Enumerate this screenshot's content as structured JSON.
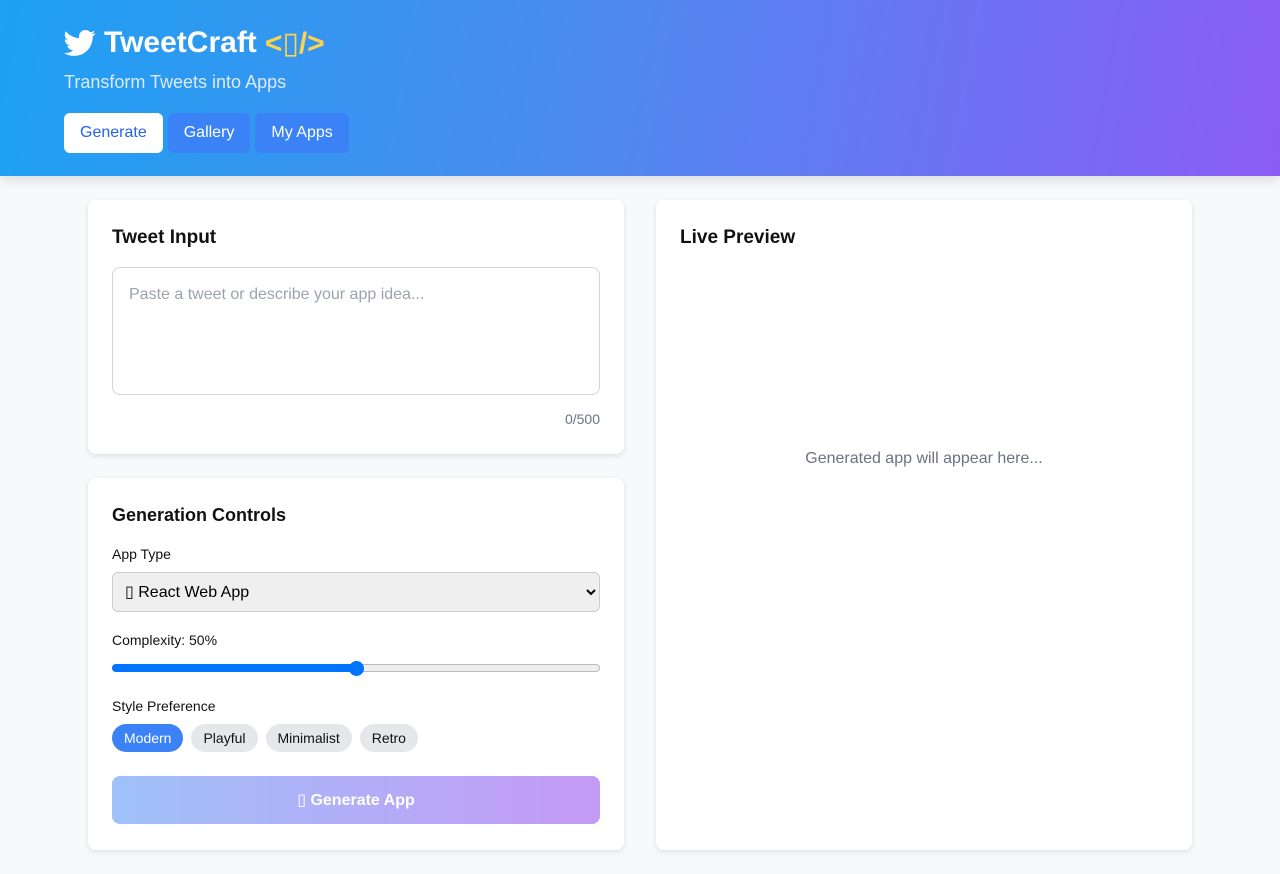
{
  "header": {
    "title": "TweetCraft",
    "code_badge": "<▯/>",
    "subtitle": "Transform Tweets into Apps",
    "nav": [
      {
        "label": "Generate",
        "active": true
      },
      {
        "label": "Gallery"
      },
      {
        "label": "My Apps"
      }
    ]
  },
  "tweet_input": {
    "title": "Tweet Input",
    "placeholder": "Paste a tweet or describe your app idea...",
    "value": "",
    "char_count": "0/500"
  },
  "controls": {
    "title": "Generation Controls",
    "app_type_label": "App Type",
    "app_type_value": "▯ React Web App",
    "complexity_label": "Complexity: 50%",
    "complexity": 50,
    "style_label": "Style Preference",
    "styles": [
      "Modern",
      "Playful",
      "Minimalist",
      "Retro"
    ],
    "selected_style": "Modern",
    "generate_label": "▯ Generate App"
  },
  "preview": {
    "title": "Live Preview",
    "placeholder": "Generated app will appear here..."
  },
  "colors": {
    "accent": "#3b82f6",
    "slider": "#0075ff",
    "badge": "#fcd34d"
  }
}
